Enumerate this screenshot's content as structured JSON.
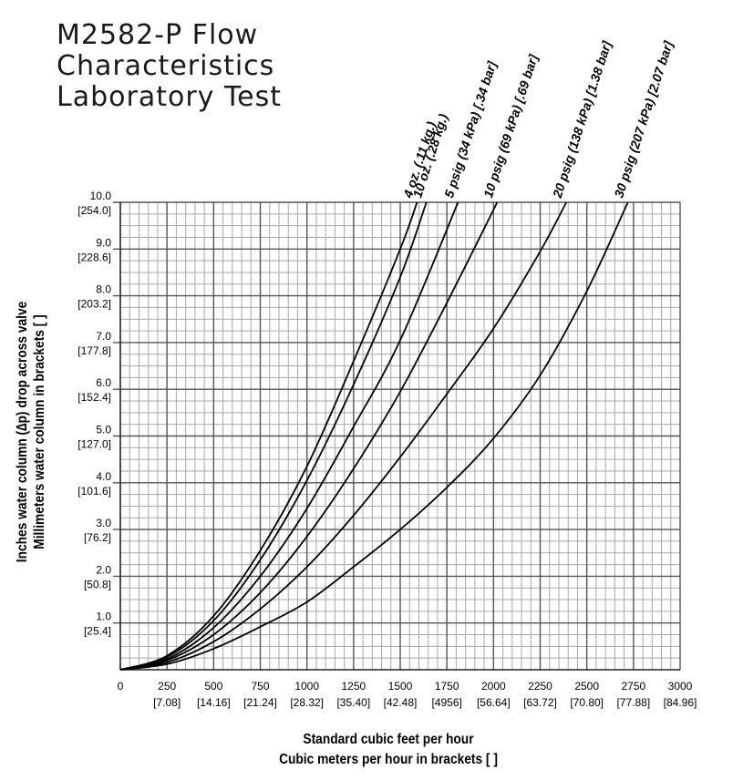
{
  "title": {
    "line1": "M2582-P Flow",
    "line2": "Characteristics",
    "line3": "Laboratory Test"
  },
  "chart_data": {
    "type": "line",
    "xlim": [
      0,
      3000
    ],
    "ylim": [
      0,
      10
    ],
    "x_ticks": [
      "0",
      "250",
      "500",
      "750",
      "1000",
      "1250",
      "1500",
      "1750",
      "2000",
      "2250",
      "2500",
      "2750",
      "3000"
    ],
    "x_ticks_metric": [
      "[7.08]",
      "[14.16]",
      "[21.24]",
      "[28.32]",
      "[35.40]",
      "[42.48]",
      "[4956]",
      "[56.64]",
      "[63.72]",
      "[70.80]",
      "[77.88]",
      "[84.96]"
    ],
    "y_ticks": [
      "1.0",
      "2.0",
      "3.0",
      "4.0",
      "5.0",
      "6.0",
      "7.0",
      "8.0",
      "9.0",
      "10.0"
    ],
    "y_ticks_metric": [
      "[25.4]",
      "[50.8]",
      "[76.2]",
      "[101.6]",
      "[127.0]",
      "[152.4]",
      "[177.8]",
      "[203.2]",
      "[228.6]",
      "[254.0]"
    ],
    "xlabel_line1": "Standard cubic feet per hour",
    "xlabel_line2": "Cubic meters per hour in brackets [ ]",
    "ylabel_line1": "Inches water column (∆p) drop across valve",
    "ylabel_line2": "Millimeters water column in brackets [ ]",
    "grid": true,
    "series": [
      {
        "name": "4 oz. (.11 kg.)",
        "x": [
          0,
          250,
          500,
          750,
          1000,
          1250,
          1500,
          1590
        ],
        "y": [
          0,
          0.3,
          1.15,
          2.55,
          4.35,
          6.6,
          9.0,
          10.0
        ]
      },
      {
        "name": "10 oz. (.28 kg.)",
        "x": [
          0,
          250,
          500,
          750,
          1000,
          1250,
          1500,
          1640
        ],
        "y": [
          0,
          0.27,
          1.05,
          2.35,
          4.05,
          6.1,
          8.4,
          10.0
        ]
      },
      {
        "name": "5 psig (34 kPa) [.34 bar]",
        "x": [
          0,
          250,
          500,
          750,
          1000,
          1250,
          1500,
          1810
        ],
        "y": [
          0,
          0.23,
          0.9,
          2.0,
          3.45,
          5.2,
          7.05,
          10.0
        ]
      },
      {
        "name": "10 psig (69 kPa) [.69 bar]",
        "x": [
          0,
          250,
          500,
          750,
          1000,
          1250,
          1500,
          1750,
          2020
        ],
        "y": [
          0,
          0.2,
          0.75,
          1.65,
          2.85,
          4.3,
          5.95,
          7.85,
          10.0
        ]
      },
      {
        "name": "20 psig (138 kPa) [1.38 bar]",
        "x": [
          0,
          250,
          500,
          750,
          1000,
          1250,
          1500,
          1750,
          2000,
          2250,
          2390
        ],
        "y": [
          0,
          0.16,
          0.6,
          1.3,
          2.2,
          3.3,
          4.55,
          5.9,
          7.3,
          8.95,
          10.0
        ]
      },
      {
        "name": "30 psig (207 kPa) [2.07 bar]",
        "x": [
          0,
          250,
          500,
          750,
          1000,
          1250,
          1500,
          1750,
          2000,
          2250,
          2500,
          2720
        ],
        "y": [
          0,
          0.12,
          0.45,
          0.92,
          1.45,
          2.2,
          3.0,
          3.9,
          4.95,
          6.3,
          8.1,
          10.0
        ]
      }
    ]
  }
}
